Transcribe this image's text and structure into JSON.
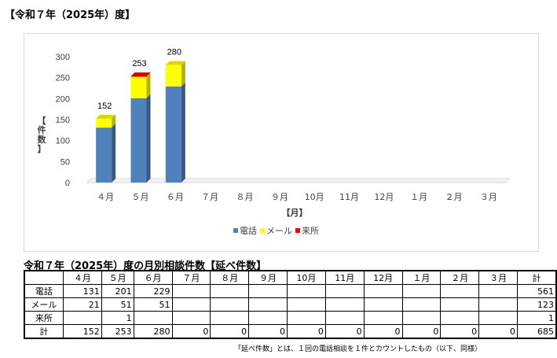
{
  "page_heading": "【令和７年（2025年）度】",
  "chart_data": {
    "type": "bar",
    "stacked": true,
    "categories": [
      "４月",
      "５月",
      "６月",
      "７月",
      "８月",
      "９月",
      "10月",
      "11月",
      "12月",
      "１月",
      "２月",
      "３月"
    ],
    "series": [
      {
        "name": "電話",
        "values": [
          131,
          201,
          229,
          null,
          null,
          null,
          null,
          null,
          null,
          null,
          null,
          null
        ],
        "color": "#4f81bd"
      },
      {
        "name": "メール",
        "values": [
          21,
          51,
          51,
          null,
          null,
          null,
          null,
          null,
          null,
          null,
          null,
          null
        ],
        "color": "#ffff00"
      },
      {
        "name": "来所",
        "values": [
          0,
          1,
          0,
          null,
          null,
          null,
          null,
          null,
          null,
          null,
          null,
          null
        ],
        "color": "#ff0000"
      }
    ],
    "totals_labels": [
      "152",
      "253",
      "280"
    ],
    "ylim": [
      0,
      300
    ],
    "yticks": [
      0,
      50,
      100,
      150,
      200,
      250,
      300
    ],
    "ylabel": "【件数】",
    "xlabel": "【月】",
    "legend_position": "bottom",
    "grid": false
  },
  "table": {
    "title": "令和７年（2025年）度の月別相談件数【延べ件数】",
    "headers": [
      "",
      "４月",
      "５月",
      "６月",
      "７月",
      "８月",
      "９月",
      "10月",
      "11月",
      "12月",
      "１月",
      "２月",
      "３月",
      "計"
    ],
    "rows": [
      [
        "電話",
        "131",
        "201",
        "229",
        "",
        "",
        "",
        "",
        "",
        "",
        "",
        "",
        "",
        "561"
      ],
      [
        "メール",
        "21",
        "51",
        "51",
        "",
        "",
        "",
        "",
        "",
        "",
        "",
        "",
        "",
        "123"
      ],
      [
        "来所",
        "",
        "1",
        "",
        "",
        "",
        "",
        "",
        "",
        "",
        "",
        "",
        "",
        "1"
      ],
      [
        "計",
        "152",
        "253",
        "280",
        "0",
        "0",
        "0",
        "0",
        "0",
        "0",
        "0",
        "0",
        "0",
        "685"
      ]
    ]
  },
  "note": "「延べ件数」とは、１回の電話相談を１件とカウントしたもの（以下、同様）"
}
